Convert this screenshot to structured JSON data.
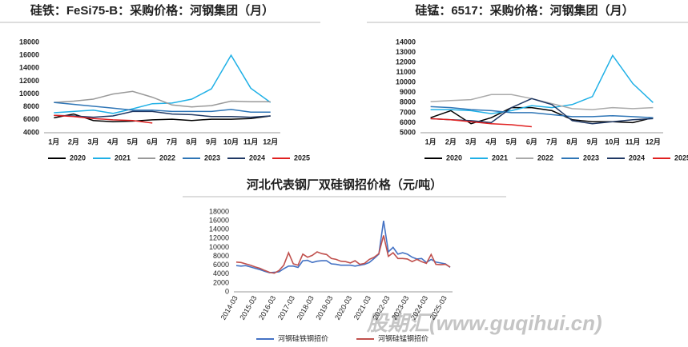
{
  "chart_data": [
    {
      "type": "line",
      "title": "硅铁：FeSi75-B：采购价格：河钢集团（月）",
      "categories": [
        "1月",
        "2月",
        "3月",
        "4月",
        "5月",
        "6月",
        "7月",
        "8月",
        "9月",
        "10月",
        "11月",
        "12月"
      ],
      "ylim": [
        4000,
        18000
      ],
      "yticks": [
        4000,
        6000,
        8000,
        10000,
        12000,
        14000,
        16000,
        18000
      ],
      "grid": false,
      "legend": "bottom",
      "series": [
        {
          "name": "2020",
          "color": "#000000",
          "values": [
            6300,
            6900,
            5900,
            5700,
            5800,
            6000,
            6100,
            5900,
            6100,
            6100,
            6200,
            6600
          ]
        },
        {
          "name": "2021",
          "color": "#1fb0e6",
          "values": [
            7100,
            7300,
            7500,
            7000,
            7700,
            8500,
            8600,
            9200,
            10800,
            16000,
            10900,
            8700
          ]
        },
        {
          "name": "2022",
          "color": "#999999",
          "values": [
            8700,
            8900,
            9200,
            10000,
            10400,
            9500,
            8300,
            8000,
            8200,
            8900,
            8800,
            8800
          ]
        },
        {
          "name": "2023",
          "color": "#2e75b6",
          "values": [
            8700,
            8400,
            8100,
            7800,
            7500,
            7500,
            7300,
            7300,
            7300,
            7600,
            7200,
            7200
          ]
        },
        {
          "name": "2024",
          "color": "#1f3864",
          "values": [
            6700,
            6600,
            6400,
            6600,
            7300,
            7300,
            6900,
            6800,
            6500,
            6500,
            6400,
            6600
          ]
        },
        {
          "name": "2025",
          "color": "#e02020",
          "values": [
            6700,
            6500,
            6200,
            6000,
            5900,
            5500,
            null,
            null,
            null,
            null,
            null,
            null
          ]
        }
      ]
    },
    {
      "type": "line",
      "title": "硅锰：6517：采购价格：河钢集团（月）",
      "categories": [
        "1月",
        "2月",
        "3月",
        "4月",
        "5月",
        "6月",
        "7月",
        "8月",
        "9月",
        "10月",
        "11月",
        "12月"
      ],
      "ylim": [
        5000,
        14000
      ],
      "yticks": [
        5000,
        6000,
        7000,
        8000,
        9000,
        10000,
        11000,
        12000,
        13000,
        14000
      ],
      "grid": false,
      "legend": "bottom",
      "series": [
        {
          "name": "2020",
          "color": "#000000",
          "values": [
            6500,
            7200,
            5900,
            6500,
            7500,
            7500,
            7200,
            6300,
            6100,
            6100,
            6000,
            6500
          ]
        },
        {
          "name": "2021",
          "color": "#1fb0e6",
          "values": [
            7300,
            7300,
            7200,
            6900,
            7200,
            7700,
            7500,
            7800,
            8600,
            12700,
            9900,
            8000
          ]
        },
        {
          "name": "2022",
          "color": "#aaaaaa",
          "values": [
            8100,
            8200,
            8300,
            8800,
            8800,
            8400,
            7900,
            7400,
            7300,
            7500,
            7400,
            7500
          ]
        },
        {
          "name": "2023",
          "color": "#2e75b6",
          "values": [
            7600,
            7500,
            7300,
            7200,
            7000,
            7000,
            6800,
            6600,
            6600,
            6700,
            6600,
            6500
          ]
        },
        {
          "name": "2024",
          "color": "#1f3864",
          "values": [
            6400,
            6300,
            6200,
            6000,
            7500,
            8400,
            7800,
            6200,
            5900,
            6100,
            6300,
            6400
          ]
        },
        {
          "name": "2025",
          "color": "#e02020",
          "values": [
            6400,
            6300,
            6100,
            5900,
            5800,
            5600,
            null,
            null,
            null,
            null,
            null,
            null
          ]
        }
      ]
    },
    {
      "type": "line",
      "title": "河北代表钢厂双硅钢招价格（元/吨）",
      "categories": [
        "2014-03",
        null,
        null,
        null,
        "2015-03",
        null,
        null,
        null,
        "2016-03",
        null,
        null,
        null,
        "2017-03",
        null,
        null,
        null,
        "2018-03",
        null,
        null,
        null,
        "2019-03",
        null,
        null,
        null,
        "2020-03",
        null,
        null,
        null,
        "2021-03",
        null,
        null,
        null,
        "2022-03",
        null,
        null,
        null,
        "2023-03",
        null,
        null,
        null,
        "2024-03",
        null,
        null,
        null,
        "2025-03",
        null
      ],
      "ylim": [
        0,
        18000
      ],
      "yticks": [
        0,
        2000,
        4000,
        6000,
        8000,
        10000,
        12000,
        14000,
        16000,
        18000
      ],
      "grid": false,
      "legend": "bottom",
      "series": [
        {
          "name": "河钢硅铁钢招价",
          "color": "#4472c4",
          "values": [
            5900,
            5800,
            5900,
            5600,
            5300,
            5000,
            4600,
            4300,
            4400,
            4500,
            5200,
            5800,
            5800,
            5500,
            7000,
            7100,
            6600,
            6900,
            7000,
            7000,
            6300,
            6200,
            6000,
            6000,
            6000,
            5800,
            6000,
            6200,
            6600,
            7500,
            8500,
            16000,
            9000,
            10000,
            8500,
            8800,
            8500,
            7800,
            7400,
            7500,
            6600,
            7300,
            6700,
            6500,
            6300,
            5500
          ]
        },
        {
          "name": "河钢硅锰钢招价",
          "color": "#c0504d",
          "values": [
            6700,
            6600,
            6300,
            6000,
            5600,
            5300,
            4800,
            4400,
            4200,
            4800,
            6000,
            8800,
            6300,
            6000,
            8500,
            7800,
            8200,
            9000,
            8600,
            8400,
            7500,
            7300,
            6900,
            6800,
            6500,
            7000,
            6200,
            6400,
            7300,
            7800,
            8600,
            12700,
            8000,
            8800,
            7500,
            7500,
            7400,
            6800,
            7300,
            6800,
            6400,
            8400,
            6200,
            6100,
            6200,
            5600
          ]
        }
      ]
    }
  ],
  "watermark": "股期汇(www.guqihui.cn)"
}
